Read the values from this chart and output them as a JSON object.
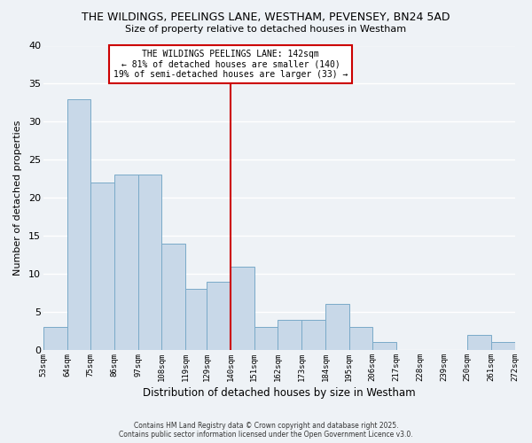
{
  "title": "THE WILDINGS, PEELINGS LANE, WESTHAM, PEVENSEY, BN24 5AD",
  "subtitle": "Size of property relative to detached houses in Westham",
  "xlabel": "Distribution of detached houses by size in Westham",
  "ylabel": "Number of detached properties",
  "bar_color": "#c8d8e8",
  "bar_edge_color": "#7aaac8",
  "background_color": "#eef2f6",
  "grid_color": "#ffffff",
  "vline_x": 140,
  "vline_color": "#cc0000",
  "annotation_line1": "THE WILDINGS PEELINGS LANE: 142sqm",
  "annotation_line2": "← 81% of detached houses are smaller (140)",
  "annotation_line3": "19% of semi-detached houses are larger (33) →",
  "annotation_box_edge": "#cc0000",
  "footer_line1": "Contains HM Land Registry data © Crown copyright and database right 2025.",
  "footer_line2": "Contains public sector information licensed under the Open Government Licence v3.0.",
  "bins": [
    53,
    64,
    75,
    86,
    97,
    108,
    119,
    129,
    140,
    151,
    162,
    173,
    184,
    195,
    206,
    217,
    228,
    239,
    250,
    261,
    272
  ],
  "counts": [
    3,
    33,
    22,
    23,
    23,
    14,
    8,
    9,
    11,
    3,
    4,
    4,
    6,
    3,
    1,
    0,
    0,
    0,
    2,
    1
  ],
  "ylim": [
    0,
    40
  ],
  "yticks": [
    0,
    5,
    10,
    15,
    20,
    25,
    30,
    35,
    40
  ],
  "tick_labels": [
    "53sqm",
    "64sqm",
    "75sqm",
    "86sqm",
    "97sqm",
    "108sqm",
    "119sqm",
    "129sqm",
    "140sqm",
    "151sqm",
    "162sqm",
    "173sqm",
    "184sqm",
    "195sqm",
    "206sqm",
    "217sqm",
    "228sqm",
    "239sqm",
    "250sqm",
    "261sqm",
    "272sqm"
  ]
}
